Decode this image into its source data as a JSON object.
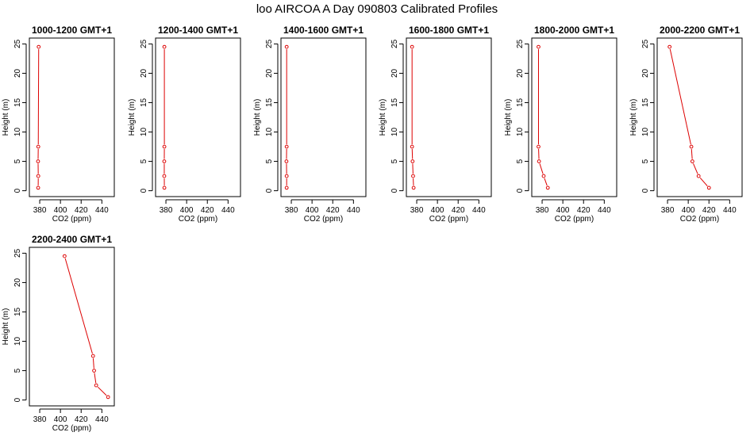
{
  "figure_title": "loo AIRCOA A  Day 090803  Calibrated Profiles",
  "colors": {
    "series": "#dd0000",
    "axis": "#000000"
  },
  "chart_data": [
    {
      "type": "line",
      "title": "1000-1200 GMT+1",
      "xlabel": "CO2 (ppm)",
      "ylabel": "Height (m)",
      "xlim": [
        370,
        452
      ],
      "ylim": [
        -1,
        26
      ],
      "xticks": [
        380,
        400,
        420,
        440
      ],
      "yticks": [
        0,
        5,
        10,
        15,
        20,
        25
      ],
      "x": [
        378.5,
        378.6,
        378.4,
        378.6,
        379.0
      ],
      "y": [
        0.5,
        2.5,
        5.0,
        7.5,
        24.5
      ]
    },
    {
      "type": "line",
      "title": "1200-1400 GMT+1",
      "xlabel": "CO2 (ppm)",
      "ylabel": "Height (m)",
      "xlim": [
        370,
        452
      ],
      "ylim": [
        -1,
        26
      ],
      "xticks": [
        380,
        400,
        420,
        440
      ],
      "yticks": [
        0,
        5,
        10,
        15,
        20,
        25
      ],
      "x": [
        378.5,
        378.4,
        378.4,
        378.5,
        378.5
      ],
      "y": [
        0.5,
        2.5,
        5.0,
        7.5,
        24.5
      ]
    },
    {
      "type": "line",
      "title": "1400-1600 GMT+1",
      "xlabel": "CO2 (ppm)",
      "ylabel": "Height (m)",
      "xlim": [
        370,
        452
      ],
      "ylim": [
        -1,
        26
      ],
      "xticks": [
        380,
        400,
        420,
        440
      ],
      "yticks": [
        0,
        5,
        10,
        15,
        20,
        25
      ],
      "x": [
        375.5,
        375.5,
        375.3,
        375.5,
        375.5
      ],
      "y": [
        0.5,
        2.5,
        5.0,
        7.5,
        24.5
      ]
    },
    {
      "type": "line",
      "title": "1600-1800 GMT+1",
      "xlabel": "CO2 (ppm)",
      "ylabel": "Height (m)",
      "xlim": [
        370,
        452
      ],
      "ylim": [
        -1,
        26
      ],
      "xticks": [
        380,
        400,
        420,
        440
      ],
      "yticks": [
        0,
        5,
        10,
        15,
        20,
        25
      ],
      "x": [
        377.0,
        376.5,
        376.0,
        375.5,
        375.5
      ],
      "y": [
        0.5,
        2.5,
        5.0,
        7.5,
        24.5
      ]
    },
    {
      "type": "line",
      "title": "1800-2000 GMT+1",
      "xlabel": "CO2 (ppm)",
      "ylabel": "Height (m)",
      "xlim": [
        370,
        452
      ],
      "ylim": [
        -1,
        26
      ],
      "xticks": [
        380,
        400,
        420,
        440
      ],
      "yticks": [
        0,
        5,
        10,
        15,
        20,
        25
      ],
      "x": [
        385.5,
        381.5,
        377.0,
        376.5,
        376.5
      ],
      "y": [
        0.5,
        2.5,
        5.0,
        7.5,
        24.5
      ]
    },
    {
      "type": "line",
      "title": "2000-2200 GMT+1",
      "xlabel": "CO2 (ppm)",
      "ylabel": "Height (m)",
      "xlim": [
        370,
        452
      ],
      "ylim": [
        -1,
        26
      ],
      "xticks": [
        380,
        400,
        420,
        440
      ],
      "yticks": [
        0,
        5,
        10,
        15,
        20,
        25
      ],
      "x": [
        420.0,
        410.0,
        404.0,
        403.0,
        382.0
      ],
      "y": [
        0.5,
        2.5,
        5.0,
        7.5,
        24.5
      ]
    },
    {
      "type": "line",
      "title": "2200-2400 GMT+1",
      "xlabel": "CO2 (ppm)",
      "ylabel": "Height (m)",
      "xlim": [
        370,
        452
      ],
      "ylim": [
        -1,
        26
      ],
      "xticks": [
        380,
        400,
        420,
        440
      ],
      "yticks": [
        0,
        5,
        10,
        15,
        20,
        25
      ],
      "x": [
        446.0,
        434.5,
        432.5,
        431.5,
        404.0
      ],
      "y": [
        0.5,
        2.5,
        5.0,
        7.5,
        24.5
      ]
    }
  ]
}
